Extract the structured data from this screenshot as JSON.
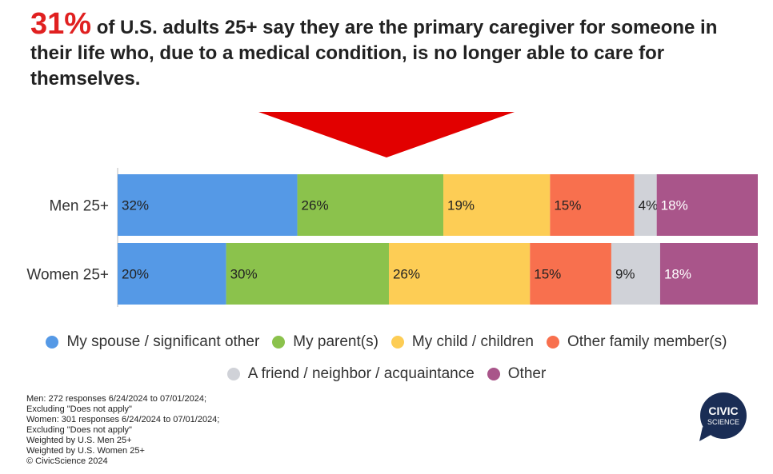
{
  "header": {
    "highlight": "31%",
    "title": "of U.S. adults 25+ say they are the primary caregiver for someone in their life who, due to a medical condition, is no longer able to care for themselves."
  },
  "colors": {
    "accent": "#e02020",
    "series": [
      "#5599e6",
      "#8bc24c",
      "#fdcd55",
      "#f8704e",
      "#d0d2d8",
      "#a9558a"
    ]
  },
  "chart_data": {
    "type": "bar",
    "orientation": "horizontal",
    "stacked": true,
    "normalized_percent": true,
    "categories": [
      "Men 25+",
      "Women 25+"
    ],
    "series": [
      {
        "name": "My spouse / significant other",
        "values": [
          32,
          20
        ]
      },
      {
        "name": "My parent(s)",
        "values": [
          26,
          30
        ]
      },
      {
        "name": "My child / children",
        "values": [
          19,
          26
        ]
      },
      {
        "name": "Other family member(s)",
        "values": [
          15,
          15
        ]
      },
      {
        "name": "A friend / neighbor / acquaintance",
        "values": [
          4,
          9
        ]
      },
      {
        "name": "Other",
        "values": [
          18,
          18
        ]
      }
    ],
    "value_suffix": "%",
    "legend_position": "bottom",
    "grid": false
  },
  "legend": {
    "row1": [
      "My spouse / significant other",
      "My parent(s)",
      "My child / children",
      "Other family member(s)"
    ],
    "row2": [
      "A friend / neighbor / acquaintance",
      "Other"
    ]
  },
  "notes": [
    "Men: 272 responses 6/24/2024 to 07/01/2024;",
    "Excluding \"Does not apply\"",
    "Women: 301 responses 6/24/2024 to 07/01/2024;",
    "Excluding \"Does not apply\"",
    "Weighted by U.S. Men 25+",
    "Weighted by U.S. Women 25+",
    "© CivicScience 2024"
  ],
  "logo": {
    "line1": "CIVIC",
    "line2": "SCIENCE"
  }
}
